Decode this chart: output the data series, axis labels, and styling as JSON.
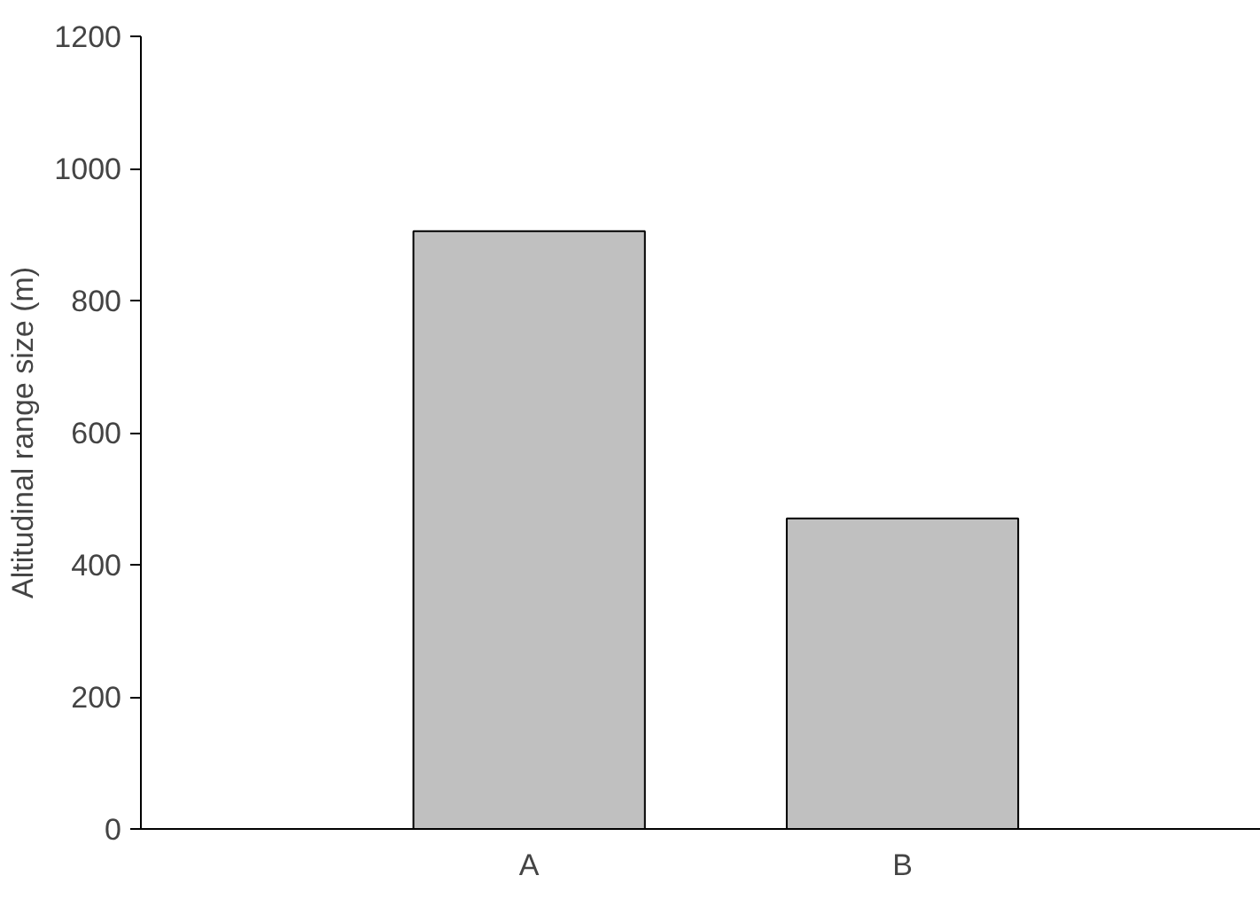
{
  "chart_data": {
    "type": "bar",
    "ylabel": "Altitudinal range size (m)",
    "categories": [
      "A",
      "B"
    ],
    "values": [
      905,
      470
    ],
    "color": "#c0c0c0",
    "ylim": [
      0,
      1200
    ],
    "yticks": [
      0,
      200,
      400,
      600,
      800,
      1000,
      1200
    ],
    "grid": false
  }
}
